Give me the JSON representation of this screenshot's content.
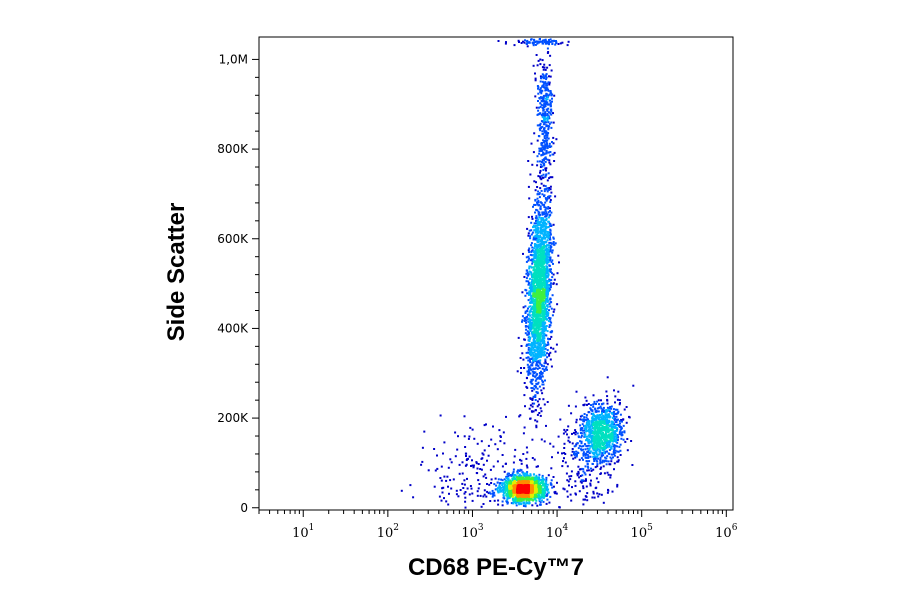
{
  "chart_data": {
    "type": "scatter",
    "subtype": "flow-cytometry-density-dot-plot",
    "xlabel": "CD68 PE-Cy™7",
    "ylabel": "Side Scatter",
    "x_scale": "log",
    "xlim": [
      3,
      1200000
    ],
    "ylim": [
      -5000,
      1050000
    ],
    "x_ticks": [
      {
        "base": "10",
        "exp": "1",
        "value": 10
      },
      {
        "base": "10",
        "exp": "2",
        "value": 100
      },
      {
        "base": "10",
        "exp": "3",
        "value": 1000
      },
      {
        "base": "10",
        "exp": "4",
        "value": 10000
      },
      {
        "base": "10",
        "exp": "5",
        "value": 100000
      },
      {
        "base": "10",
        "exp": "6",
        "value": 1000000
      }
    ],
    "y_ticks": [
      {
        "label": "0",
        "value": 0
      },
      {
        "label": "200K",
        "value": 200000
      },
      {
        "label": "400K",
        "value": 400000
      },
      {
        "label": "600K",
        "value": 600000
      },
      {
        "label": "800K",
        "value": 800000
      },
      {
        "label": "1,0M",
        "value": 1000000
      }
    ],
    "grid": false,
    "colormap": [
      "#0000c8",
      "#0050ff",
      "#00b4ff",
      "#00e0c0",
      "#40f040",
      "#e0f000",
      "#ff8c00",
      "#ff0000"
    ],
    "populations": [
      {
        "x_center": 4000,
        "y_center": 45000,
        "x_spread_log": 0.13,
        "y_spread": 14000,
        "count": 1600
      },
      {
        "x_center": 6000,
        "y_center": 480000,
        "x_spread_log": 0.07,
        "y_spread": 110000,
        "tilt": 0.22,
        "count": 2200
      },
      {
        "x_center": 33000,
        "y_center": 170000,
        "x_spread_log": 0.12,
        "y_spread": 32000,
        "count": 900
      },
      {
        "x_center": 7000,
        "y_center": 880000,
        "x_spread_log": 0.05,
        "y_spread": 70000,
        "count": 350
      },
      {
        "x_center": 1200,
        "y_center": 60000,
        "x_spread_log": 0.35,
        "y_spread": 60000,
        "count": 260
      },
      {
        "x_center": 20000,
        "y_center": 100000,
        "x_spread_log": 0.2,
        "y_spread": 70000,
        "count": 250
      },
      {
        "x_center": 6000,
        "y_center": 1040000,
        "x_spread_log": 0.18,
        "y_spread": 4000,
        "count": 80
      }
    ]
  }
}
